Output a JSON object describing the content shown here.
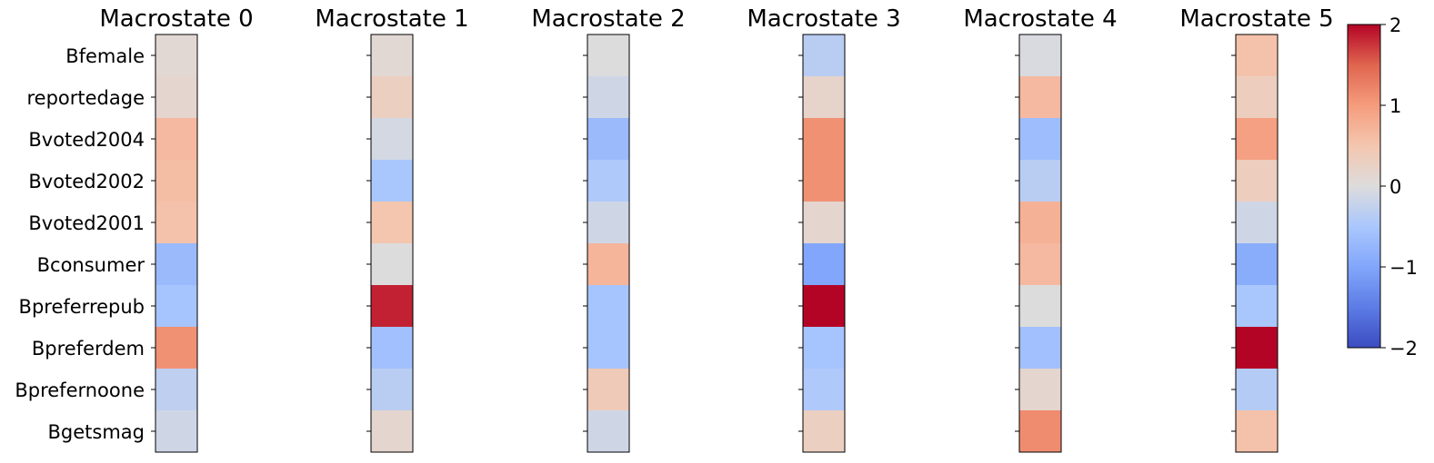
{
  "chart_data": {
    "type": "heatmap",
    "panels": [
      {
        "title": "Macrostate 0",
        "values": [
          0.1,
          0.15,
          0.65,
          0.6,
          0.55,
          -0.7,
          -0.55,
          1.1,
          -0.3,
          -0.15
        ]
      },
      {
        "title": "Macrostate 1",
        "values": [
          0.1,
          0.3,
          -0.1,
          -0.5,
          0.5,
          0.0,
          1.85,
          -0.6,
          -0.35,
          0.15
        ]
      },
      {
        "title": "Macrostate 2",
        "values": [
          0.0,
          -0.15,
          -0.7,
          -0.45,
          -0.15,
          0.7,
          -0.55,
          -0.55,
          0.4,
          -0.15
        ]
      },
      {
        "title": "Macrostate 3",
        "values": [
          -0.35,
          0.2,
          1.1,
          1.1,
          0.15,
          -1.0,
          2.0,
          -0.55,
          -0.45,
          0.3
        ]
      },
      {
        "title": "Macrostate 4",
        "values": [
          -0.05,
          0.65,
          -0.65,
          -0.35,
          0.75,
          0.65,
          0.0,
          -0.6,
          0.15,
          1.15
        ]
      },
      {
        "title": "Macrostate 5",
        "values": [
          0.55,
          0.35,
          0.95,
          0.35,
          -0.15,
          -0.9,
          -0.5,
          2.15,
          -0.4,
          0.55
        ]
      }
    ],
    "row_labels": [
      "Bfemale",
      "reportedage",
      "Bvoted2004",
      "Bvoted2002",
      "Bvoted2001",
      "Bconsumer",
      "Bpreferrepub",
      "Bpreferdem",
      "Bprefernoone",
      "Bgetsmag"
    ],
    "colorbar": {
      "colormap": "coolwarm",
      "range": [
        -2,
        2
      ],
      "ticks": [
        2,
        1,
        0,
        -1,
        -2
      ],
      "tick_labels": [
        "2",
        "1",
        "0",
        "−1",
        "−2"
      ]
    }
  }
}
